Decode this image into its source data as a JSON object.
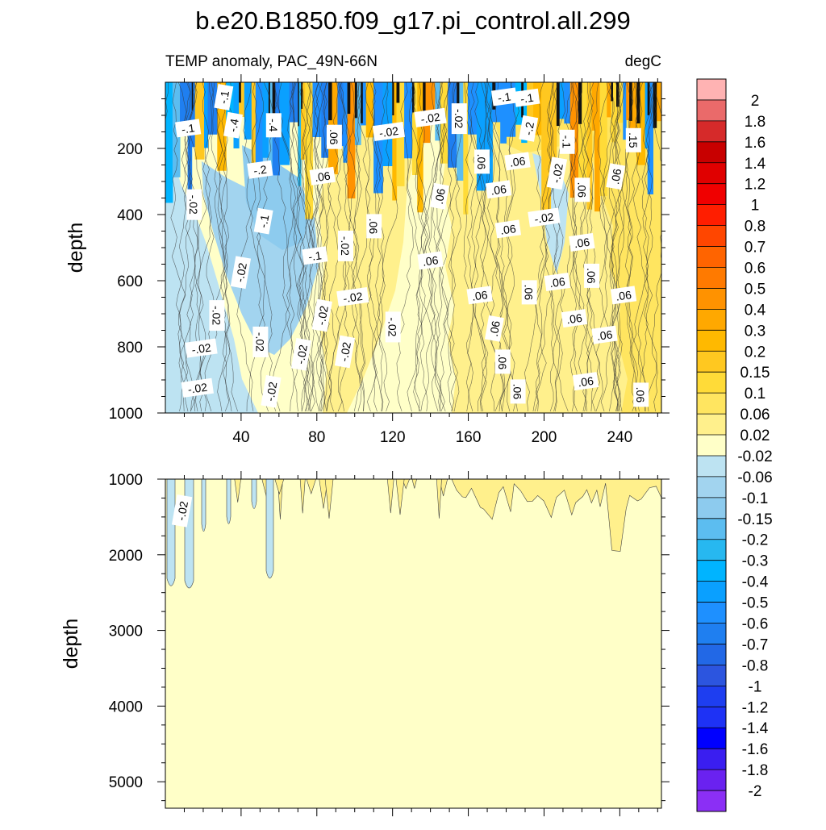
{
  "title": "b.e20.B1850.f09_g17.pi_control.all.299",
  "subtitle_left": "TEMP anomaly, PAC_49N-66N",
  "subtitle_right": "degC",
  "chart_data": [
    {
      "type": "contour",
      "panel": "upper",
      "ylabel": "depth",
      "xlabel": "",
      "xlim": [
        0,
        262
      ],
      "ylim": [
        1000,
        0
      ],
      "x_ticks": [
        "40",
        "80",
        "120",
        "160",
        "200",
        "240"
      ],
      "y_ticks": [
        "200",
        "400",
        "600",
        "800",
        "1000"
      ],
      "contour_labels": [
        {
          "text": "-.1",
          "x": 31,
          "y": 45
        },
        {
          "text": "-.1",
          "x": 12,
          "y": 140
        },
        {
          "text": "-.4",
          "x": 36,
          "y": 130
        },
        {
          "text": "-.4",
          "x": 57,
          "y": 130
        },
        {
          "text": "-.2",
          "x": 50,
          "y": 265
        },
        {
          "text": "-.02",
          "x": 15,
          "y": 370
        },
        {
          "text": "-.1",
          "x": 52,
          "y": 420
        },
        {
          "text": "-.1",
          "x": 79,
          "y": 525
        },
        {
          "text": "-.02",
          "x": 40,
          "y": 575
        },
        {
          "text": "-.02",
          "x": 27,
          "y": 705
        },
        {
          "text": "-.02",
          "x": 19,
          "y": 805
        },
        {
          "text": "-.02",
          "x": 50,
          "y": 785
        },
        {
          "text": "-.02",
          "x": 72,
          "y": 823
        },
        {
          "text": "-.02",
          "x": 17,
          "y": 925
        },
        {
          "text": "-.02",
          "x": 56,
          "y": 935
        },
        {
          "text": ".06",
          "x": 89,
          "y": 165
        },
        {
          "text": ".06",
          "x": 83,
          "y": 285
        },
        {
          "text": "-.02",
          "x": 95,
          "y": 495
        },
        {
          "text": "-.02",
          "x": 83,
          "y": 705
        },
        {
          "text": "-.02",
          "x": 99,
          "y": 650
        },
        {
          "text": "-.02",
          "x": 95,
          "y": 815
        },
        {
          "text": ".06",
          "x": 110,
          "y": 435
        },
        {
          "text": "-.02",
          "x": 118,
          "y": 150
        },
        {
          "text": "-.02",
          "x": 120,
          "y": 740
        },
        {
          "text": ".06",
          "x": 140,
          "y": 540
        },
        {
          "text": "-.02",
          "x": 140,
          "y": 108
        },
        {
          "text": ".06",
          "x": 145,
          "y": 345
        },
        {
          "text": "-.02",
          "x": 155,
          "y": 110
        },
        {
          "text": ".06",
          "x": 166,
          "y": 645
        },
        {
          "text": ".06",
          "x": 167,
          "y": 240
        },
        {
          "text": ".06",
          "x": 174,
          "y": 745
        },
        {
          "text": "-.1",
          "x": 179,
          "y": 45
        },
        {
          "text": ".06",
          "x": 176,
          "y": 325
        },
        {
          "text": ".06",
          "x": 178,
          "y": 845
        },
        {
          "text": ".06",
          "x": 181,
          "y": 445
        },
        {
          "text": ".06",
          "x": 186,
          "y": 935
        },
        {
          "text": ".06",
          "x": 186,
          "y": 240
        },
        {
          "text": "-.1",
          "x": 191,
          "y": 48
        },
        {
          "text": "-.2",
          "x": 192,
          "y": 140
        },
        {
          "text": ".06",
          "x": 192,
          "y": 635
        },
        {
          "text": "-.02",
          "x": 200,
          "y": 410
        },
        {
          "text": "-.1",
          "x": 212,
          "y": 180
        },
        {
          "text": "-.02",
          "x": 207,
          "y": 275
        },
        {
          "text": ".06",
          "x": 207,
          "y": 605
        },
        {
          "text": ".06",
          "x": 216,
          "y": 715
        },
        {
          "text": ".06",
          "x": 220,
          "y": 325
        },
        {
          "text": ".06",
          "x": 220,
          "y": 485
        },
        {
          "text": ".06",
          "x": 225,
          "y": 585
        },
        {
          "text": ".06",
          "x": 222,
          "y": 905
        },
        {
          "text": ".06",
          "x": 232,
          "y": 765
        },
        {
          "text": ".06",
          "x": 238,
          "y": 285
        },
        {
          "text": ".15",
          "x": 247,
          "y": 175
        },
        {
          "text": ".06",
          "x": 242,
          "y": 645
        },
        {
          "text": ".06",
          "x": 251,
          "y": 945
        }
      ]
    },
    {
      "type": "contour",
      "panel": "lower",
      "ylabel": "depth",
      "xlabel": "",
      "xlim": [
        0,
        262
      ],
      "ylim": [
        5350,
        1000
      ],
      "x_ticks": [],
      "y_ticks": [
        "1000",
        "2000",
        "3000",
        "4000",
        "5000"
      ],
      "contour_labels": [
        {
          "text": "-.02",
          "x": 9,
          "y": 1420
        }
      ]
    }
  ],
  "colorbar": {
    "levels": [
      "2",
      "1.8",
      "1.6",
      "1.4",
      "1.2",
      "1",
      "0.8",
      "0.7",
      "0.6",
      "0.5",
      "0.4",
      "0.3",
      "0.2",
      "0.15",
      "0.1",
      "0.06",
      "0.02",
      "-0.02",
      "-0.06",
      "-0.1",
      "-0.15",
      "-0.2",
      "-0.3",
      "-0.4",
      "-0.5",
      "-0.6",
      "-0.7",
      "-0.8",
      "-1",
      "-1.2",
      "-1.4",
      "-1.6",
      "-1.8",
      "-2"
    ],
    "colors": [
      "#ffb3b3",
      "#ea6a6a",
      "#d62a2a",
      "#c80000",
      "#e00000",
      "#f00000",
      "#ff1e00",
      "#ff4600",
      "#ff6400",
      "#ff7a00",
      "#ff9200",
      "#ffa800",
      "#ffb900",
      "#ffc820",
      "#ffdb38",
      "#ffe560",
      "#fff08c",
      "#ffffc8",
      "#bde3f2",
      "#a2d4ef",
      "#8dcbee",
      "#5cbdf0",
      "#27b8f0",
      "#00b4ff",
      "#0aa0ff",
      "#1e90ff",
      "#1f7ff0",
      "#2268e6",
      "#2c55df",
      "#1e3ef0",
      "#1e32f5",
      "#0000ff",
      "#3a1ef0",
      "#6a22f0",
      "#8b2ff5"
    ]
  },
  "colors": {
    "background_fill": "#ffffc8",
    "warm_fill": "#fff08c",
    "warmer_fill": "#ffe560",
    "cool_fill": "#bde3f2",
    "cooler_fill": "#a2d4ef"
  }
}
